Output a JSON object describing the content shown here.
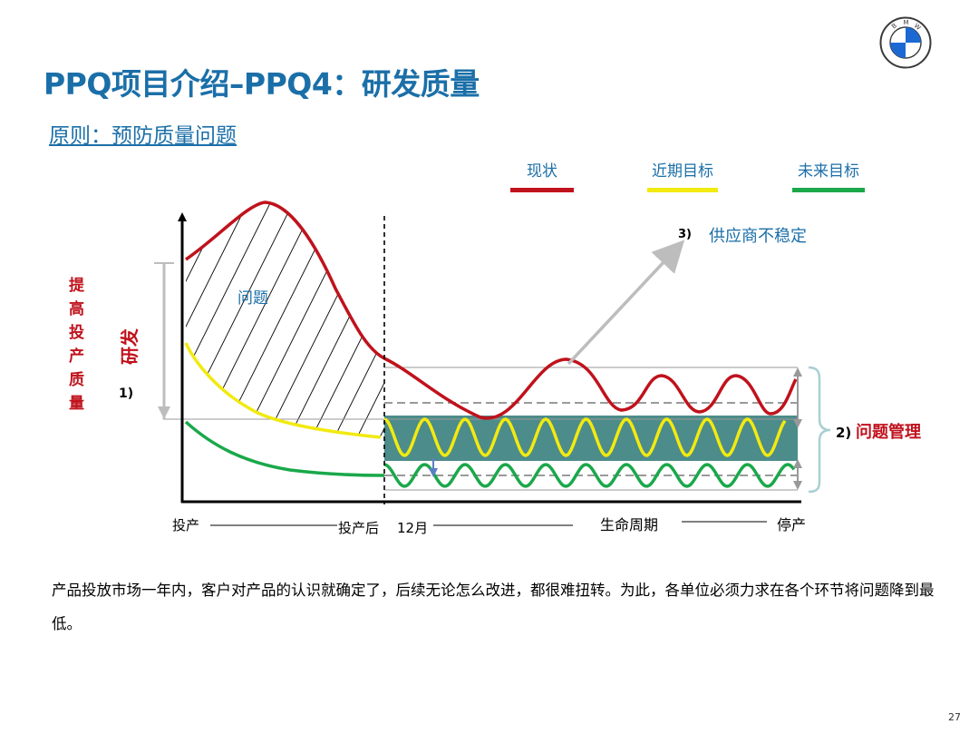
{
  "slide": {
    "title": "PPQ项目介绍–PPQ4：研发质量",
    "subtitle": "原则：预防质量问题",
    "page_number": "27",
    "logo_letters": "BMW",
    "body_text": "产品投放市场一年内，客户对产品的认识就确定了，后续无论怎么改进，都很难扭转。为此，各单位必须力求在各个环节将问题降到最低。"
  },
  "legend": [
    {
      "label": "现状",
      "color": "#c0121c"
    },
    {
      "label": "近期目标",
      "color": "#f2ea10"
    },
    {
      "label": "未来目标",
      "color": "#1aa84a"
    }
  ],
  "diagram": {
    "left_label_vertical": [
      "提",
      "高",
      "投",
      "产",
      "质",
      "量"
    ],
    "rd_label": "研发",
    "marker_1": "1)",
    "marker_2": "2)",
    "marker_3": "3)",
    "problem_label": "问题",
    "supplier_label": "供应商不稳定",
    "problem_mgmt_label": "问题管理",
    "x_axis": {
      "start": "投产",
      "after": "投产后",
      "months": "12月",
      "lifecycle": "生命周期",
      "end": "停产"
    },
    "colors": {
      "teal_band": "#4c8c8a",
      "arrow_gray": "#bdbdbd",
      "axis": "#000000"
    }
  }
}
